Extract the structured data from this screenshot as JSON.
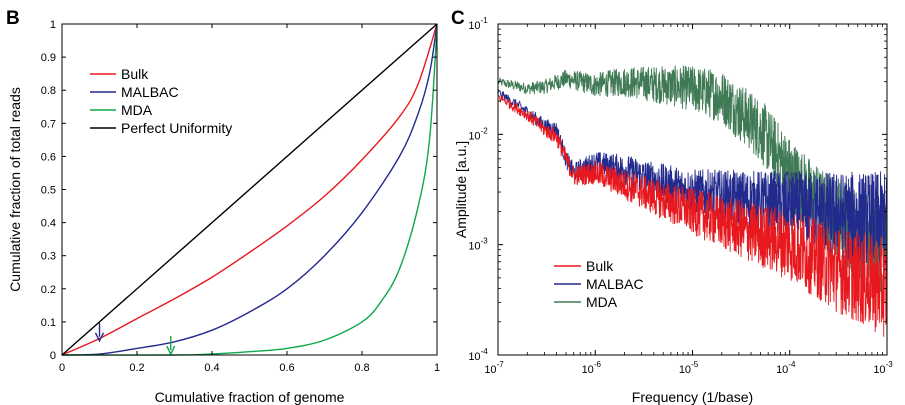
{
  "chart_data": [
    {
      "panel": "B",
      "type": "line",
      "xlabel": "Cumulative fraction of genome",
      "ylabel": "Cumulative fraction of total reads",
      "xlim": [
        0,
        1
      ],
      "ylim": [
        0,
        1
      ],
      "xticks": [
        "0",
        "0.2",
        "0.4",
        "0.6",
        "0.8",
        "1"
      ],
      "yticks": [
        "0",
        "0.1",
        "0.2",
        "0.3",
        "0.4",
        "0.5",
        "0.6",
        "0.7",
        "0.8",
        "0.9",
        "1"
      ],
      "legend_position": "top-left",
      "series": [
        {
          "name": "Bulk",
          "color": "#e8191e",
          "x": [
            0,
            0.1,
            0.2,
            0.3,
            0.4,
            0.5,
            0.6,
            0.7,
            0.8,
            0.9,
            0.95,
            1.0
          ],
          "y": [
            0,
            0.05,
            0.11,
            0.17,
            0.235,
            0.31,
            0.39,
            0.48,
            0.59,
            0.72,
            0.82,
            1.0
          ]
        },
        {
          "name": "MALBAC",
          "color": "#232a8e",
          "x": [
            0,
            0.1,
            0.2,
            0.3,
            0.4,
            0.5,
            0.6,
            0.7,
            0.8,
            0.9,
            0.95,
            0.98,
            1.0
          ],
          "y": [
            0,
            0.003,
            0.02,
            0.04,
            0.075,
            0.13,
            0.2,
            0.3,
            0.43,
            0.6,
            0.73,
            0.85,
            1.0
          ]
        },
        {
          "name": "MDA",
          "color": "#10a84d",
          "x": [
            0,
            0.3,
            0.4,
            0.5,
            0.6,
            0.7,
            0.8,
            0.85,
            0.9,
            0.95,
            0.98,
            1.0
          ],
          "y": [
            0,
            0,
            0.003,
            0.01,
            0.02,
            0.045,
            0.1,
            0.16,
            0.26,
            0.45,
            0.65,
            0.99
          ]
        },
        {
          "name": "Perfect Uniformity",
          "color": "#000000",
          "x": [
            0,
            1
          ],
          "y": [
            0,
            1
          ]
        }
      ],
      "annotations": [
        {
          "type": "arrow",
          "x": 0.1,
          "y": 0.04,
          "color": "#232a8e"
        },
        {
          "type": "arrow",
          "x": 0.29,
          "y": 0.0,
          "color": "#10a84d"
        }
      ]
    },
    {
      "panel": "C",
      "type": "line",
      "xlabel": "Frequency (1/base)",
      "ylabel": "Amplitude [a.u.]",
      "xscale": "log",
      "yscale": "log",
      "xlim": [
        1e-07,
        0.001
      ],
      "ylim": [
        0.0001,
        0.1
      ],
      "xticks": [
        {
          "base": "10",
          "exp": "-7"
        },
        {
          "base": "10",
          "exp": "-6"
        },
        {
          "base": "10",
          "exp": "-5"
        },
        {
          "base": "10",
          "exp": "-4"
        },
        {
          "base": "10",
          "exp": "-3"
        }
      ],
      "yticks": [
        {
          "base": "10",
          "exp": "-4"
        },
        {
          "base": "10",
          "exp": "-3"
        },
        {
          "base": "10",
          "exp": "-2"
        },
        {
          "base": "10",
          "exp": "-1"
        }
      ],
      "legend_position": "bottom-left",
      "series": [
        {
          "name": "MDA",
          "color": "#3f7a55",
          "x": [
            1e-07,
            2e-07,
            3e-07,
            5e-07,
            1e-06,
            2e-06,
            5e-06,
            1e-05,
            2e-05,
            5e-05,
            0.0001,
            0.0002,
            0.0005,
            0.001
          ],
          "y": [
            0.03,
            0.026,
            0.027,
            0.032,
            0.028,
            0.03,
            0.028,
            0.026,
            0.022,
            0.011,
            0.0045,
            0.0022,
            0.0013,
            0.0009
          ]
        },
        {
          "name": "MALBAC",
          "color": "#232a8e",
          "x": [
            1e-07,
            2e-07,
            3e-07,
            4e-07,
            5e-07,
            6e-07,
            1e-06,
            2e-06,
            5e-06,
            1e-05,
            0.0001,
            0.001
          ],
          "y": [
            0.024,
            0.016,
            0.012,
            0.011,
            0.006,
            0.0045,
            0.0055,
            0.0048,
            0.0036,
            0.003,
            0.0022,
            0.0016
          ]
        },
        {
          "name": "Bulk",
          "color": "#e8191e",
          "x": [
            1e-07,
            2e-07,
            3e-07,
            4e-07,
            5e-07,
            6e-07,
            1e-06,
            2e-06,
            5e-06,
            1e-05,
            3e-05,
            0.0001,
            0.0003,
            0.001
          ],
          "y": [
            0.022,
            0.015,
            0.011,
            0.0095,
            0.006,
            0.0042,
            0.0045,
            0.0035,
            0.0025,
            0.002,
            0.0014,
            0.001,
            0.0006,
            0.0004
          ]
        }
      ],
      "legend_order": [
        "Bulk",
        "MALBAC",
        "MDA"
      ]
    }
  ]
}
